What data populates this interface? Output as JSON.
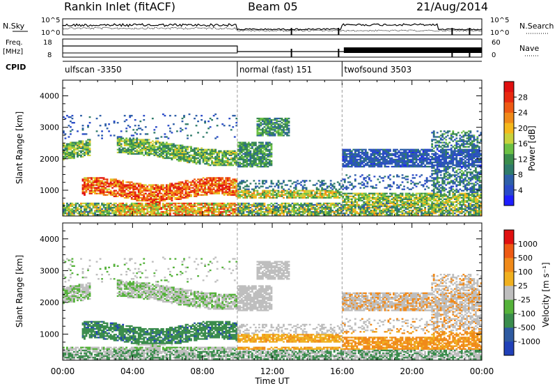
{
  "header": {
    "station": "Rankin Inlet (fitACF)",
    "beam": "Beam 05",
    "date": "21/Aug/2014"
  },
  "nsky_panel": {
    "left_label": "N.Sky",
    "right_label": "N.Search",
    "left_ticks": [
      "10^5",
      "10^0"
    ],
    "right_ticks": [
      "10^5",
      "10^0"
    ]
  },
  "freq_panel": {
    "left_label_top": "Freq.",
    "left_label_unit": "[MHz]",
    "right_label": "Nave",
    "left_ticks": [
      "18",
      "8"
    ],
    "right_ticks": [
      "60",
      "0"
    ]
  },
  "cpid": {
    "label": "CPID",
    "segments": [
      {
        "name": "ulfscan -3350",
        "start_hour": 0,
        "end_hour": 10
      },
      {
        "name": "normal (fast) 151",
        "start_hour": 10,
        "end_hour": 16
      },
      {
        "name": "twofsound 3503",
        "start_hour": 16,
        "end_hour": 24
      }
    ]
  },
  "chart_data": [
    {
      "type": "heatmap",
      "title": "",
      "ylabel": "Slant Range [km]",
      "xlabel": "",
      "xlim": [
        0,
        24
      ],
      "ylim": [
        180,
        4500
      ],
      "yticks": [
        "1000",
        "2000",
        "3000",
        "4000"
      ],
      "colorbar": {
        "label": "Power [dB]",
        "range": [
          0,
          32
        ],
        "ticks": [
          "4",
          "8",
          "12",
          "16",
          "20",
          "24",
          "28"
        ],
        "colors": [
          "#1e1eff",
          "#2a4bc8",
          "#2e5fa8",
          "#2f7b6a",
          "#3a8c4c",
          "#6cc044",
          "#c8d23c",
          "#f4b81c",
          "#f08a1a",
          "#ee5a14",
          "#e82a10",
          "#e01010"
        ]
      }
    },
    {
      "type": "heatmap",
      "title": "",
      "ylabel": "Slant Range [km]",
      "xlabel": "Time UT",
      "xlim": [
        0,
        24
      ],
      "ylim": [
        180,
        4500
      ],
      "yticks": [
        "1000",
        "2000",
        "3000",
        "4000"
      ],
      "xticks": [
        "00:00",
        "04:00",
        "08:00",
        "12:00",
        "16:00",
        "20:00",
        "00:00"
      ],
      "colorbar": {
        "label": "Velocity [m s⁻¹]",
        "ticks": [
          "1000",
          "500",
          "100",
          "25",
          "-25",
          "-100",
          "-500",
          "-1000"
        ],
        "colors": [
          "#2040b8",
          "#2e5aa0",
          "#3a8c4c",
          "#55b23a",
          "#bebebe",
          "#f0b020",
          "#f08a1a",
          "#ee5a14",
          "#e01010"
        ]
      }
    }
  ]
}
